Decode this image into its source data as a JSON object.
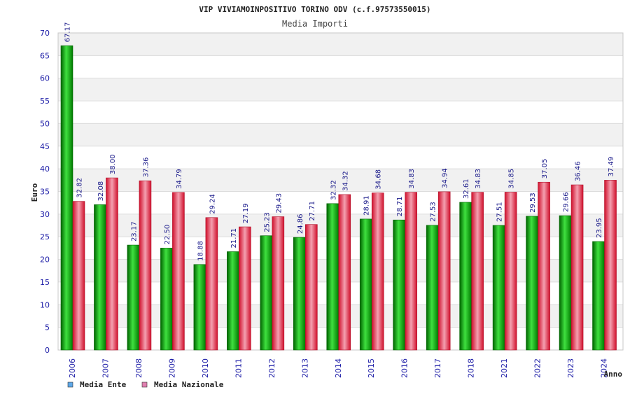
{
  "chart_data": {
    "type": "bar",
    "title": "VIP VIVIAMOINPOSITIVO TORINO ODV (c.f.97573550015)",
    "subtitle": "Media Importi",
    "xlabel": "Anno",
    "ylabel": "Euro",
    "ylim": [
      0,
      70
    ],
    "y_ticks": [
      "0",
      "5",
      "10",
      "15",
      "20",
      "25",
      "30",
      "35",
      "40",
      "45",
      "50",
      "55",
      "60",
      "65",
      "70"
    ],
    "grid": true,
    "legend_position": "bottom-left",
    "categories": [
      "2006",
      "2007",
      "2008",
      "2009",
      "2010",
      "2011",
      "2012",
      "2013",
      "2014",
      "2015",
      "2016",
      "2017",
      "2018",
      "2021",
      "2022",
      "2023",
      "2024"
    ],
    "series": [
      {
        "name": "Media Ente",
        "color": "#1aa61a",
        "legend_color": "#5ea8e8",
        "values": [
          67.17,
          32.08,
          23.17,
          22.5,
          18.88,
          21.71,
          25.23,
          24.86,
          32.32,
          28.91,
          28.71,
          27.53,
          32.61,
          27.51,
          29.53,
          29.66,
          23.95
        ],
        "labels": [
          "67.17",
          "32.08",
          "23.17",
          "22.50",
          "18.88",
          "21.71",
          "25.23",
          "24.86",
          "32.32",
          "28.91",
          "28.71",
          "27.53",
          "32.61",
          "27.51",
          "29.53",
          "29.66",
          "23.95"
        ]
      },
      {
        "name": "Media Nazionale",
        "color": "#e8304a",
        "legend_color": "#e080b0",
        "values": [
          32.82,
          38.0,
          37.36,
          34.79,
          29.24,
          27.19,
          29.43,
          27.71,
          34.32,
          34.68,
          34.83,
          34.94,
          34.83,
          34.85,
          37.05,
          36.46,
          37.49
        ],
        "labels": [
          "32.82",
          "38.00",
          "37.36",
          "34.79",
          "29.24",
          "27.19",
          "29.43",
          "27.71",
          "34.32",
          "34.68",
          "34.83",
          "34.94",
          "34.83",
          "34.85",
          "37.05",
          "36.46",
          "37.49"
        ]
      }
    ]
  }
}
